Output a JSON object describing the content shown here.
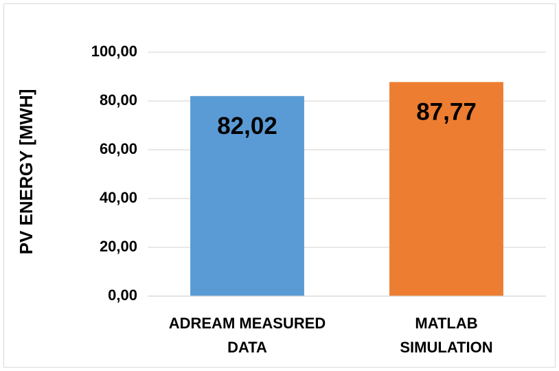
{
  "chart_data": {
    "type": "bar",
    "y_label": "PV ENERGY [MWH]",
    "categories": [
      "ADREAM MEASURED DATA",
      "MATLAB SIMULATION"
    ],
    "values": [
      82.02,
      87.77
    ],
    "value_labels": [
      "82,02",
      "87,77"
    ],
    "colors": [
      "#5b9bd5",
      "#ed7d31"
    ],
    "ylim": [
      0,
      100
    ],
    "yticks": [
      {
        "value": 0,
        "label": "0,00"
      },
      {
        "value": 20,
        "label": "20,00"
      },
      {
        "value": 40,
        "label": "40,00"
      },
      {
        "value": 60,
        "label": "60,00"
      },
      {
        "value": 80,
        "label": "80,00"
      },
      {
        "value": 100,
        "label": "100,00"
      }
    ],
    "grid": true
  }
}
